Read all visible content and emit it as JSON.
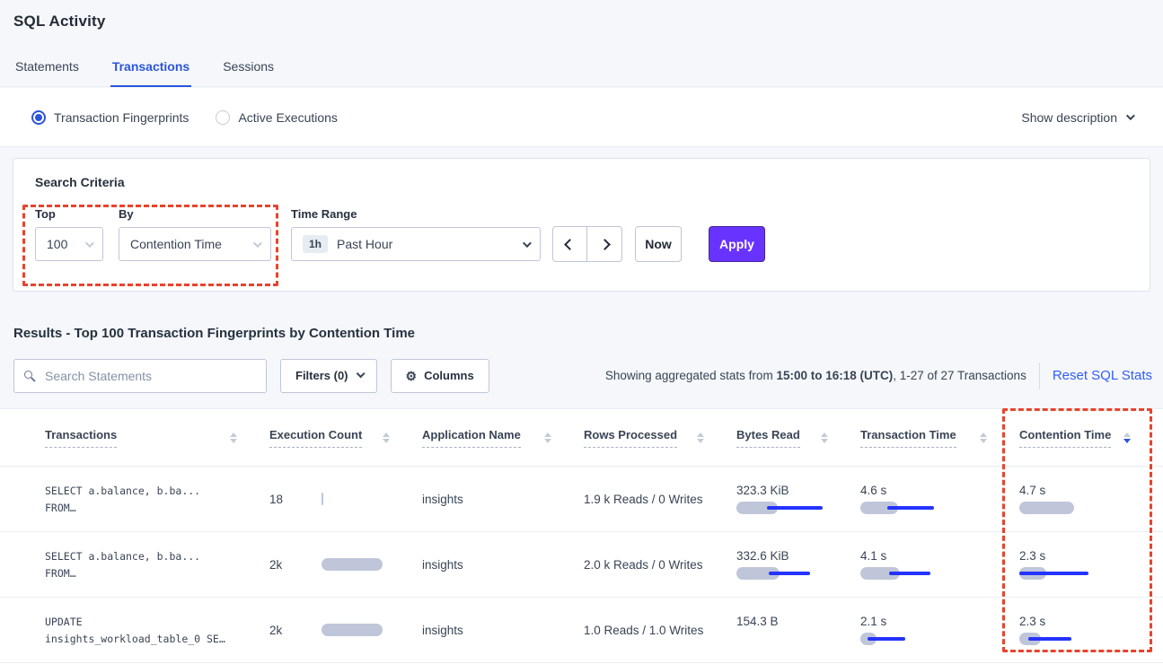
{
  "page": {
    "title": "SQL Activity"
  },
  "tabs": [
    {
      "label": "Statements",
      "active": false
    },
    {
      "label": "Transactions",
      "active": true
    },
    {
      "label": "Sessions",
      "active": false
    }
  ],
  "view_toggle": {
    "options": [
      {
        "label": "Transaction Fingerprints",
        "selected": true
      },
      {
        "label": "Active Executions",
        "selected": false
      }
    ],
    "show_description_label": "Show description"
  },
  "search_criteria": {
    "heading": "Search Criteria",
    "top": {
      "label": "Top",
      "value": "100"
    },
    "by": {
      "label": "By",
      "value": "Contention Time"
    },
    "time_range": {
      "label": "Time Range",
      "badge": "1h",
      "value": "Past Hour"
    },
    "now_label": "Now",
    "apply_label": "Apply"
  },
  "results": {
    "heading": "Results - Top 100 Transaction Fingerprints by Contention Time",
    "search_placeholder": "Search Statements",
    "filters_label": "Filters (0)",
    "columns_label": "Columns",
    "stats_prefix": "Showing aggregated stats from ",
    "stats_bold": "15:00 to 16:18 (UTC)",
    "stats_suffix": ", 1-27 of 27 Transactions",
    "reset_label": "Reset SQL Stats"
  },
  "table": {
    "columns": [
      "Transactions",
      "Execution Count",
      "Application Name",
      "Rows Processed",
      "Bytes Read",
      "Transaction Time",
      "Contention Time"
    ],
    "sorted_column": "Contention Time",
    "sort_direction": "desc",
    "rows": [
      {
        "fingerprint_line1": "SELECT a.balance, b.ba...",
        "fingerprint_line2": "FROM…",
        "execution_count": "18",
        "application_name": "insights",
        "rows_processed": "1.9 k Reads / 0 Writes",
        "bytes_read": "323.3 KiB",
        "transaction_time": "4.6 s",
        "contention_time": "4.7 s",
        "bars": {
          "execution": 2,
          "bytes_read": {
            "bar": 46,
            "line": [
              34,
              96
            ]
          },
          "transaction_time": {
            "bar": 42,
            "line": [
              30,
              82
            ]
          },
          "contention_time": {
            "bar": 61,
            "line": null
          }
        }
      },
      {
        "fingerprint_line1": "SELECT a.balance, b.ba...",
        "fingerprint_line2": "FROM…",
        "execution_count": "2k",
        "application_name": "insights",
        "rows_processed": "2.0 k Reads / 0 Writes",
        "bytes_read": "332.6 KiB",
        "transaction_time": "4.1 s",
        "contention_time": "2.3 s",
        "bars": {
          "execution": 68,
          "bytes_read": {
            "bar": 48,
            "line": [
              36,
              82
            ]
          },
          "transaction_time": {
            "bar": 44,
            "line": [
              32,
              78
            ]
          },
          "contention_time": {
            "bar": 30,
            "line": [
              0,
              77
            ]
          }
        }
      },
      {
        "fingerprint_line1": "UPDATE",
        "fingerprint_line2": "insights_workload_table_0 SE…",
        "execution_count": "2k",
        "application_name": "insights",
        "rows_processed": "1.0 Reads / 1.0 Writes",
        "bytes_read": "154.3 B",
        "transaction_time": "2.1 s",
        "contention_time": "2.3 s",
        "bars": {
          "execution": 68,
          "bytes_read": {
            "bar": 0,
            "line": null
          },
          "transaction_time": {
            "bar": 18,
            "line": [
              8,
              50
            ]
          },
          "contention_time": {
            "bar": 24,
            "line": [
              10,
              58
            ]
          }
        }
      }
    ]
  },
  "colors": {
    "accent_blue": "#2b55db",
    "link_blue": "#315efb",
    "apply_purple": "#6933ff",
    "bar_gray": "#c0c6d9",
    "bar_blue": "#2433ff",
    "highlight_red": "#e8432c"
  }
}
